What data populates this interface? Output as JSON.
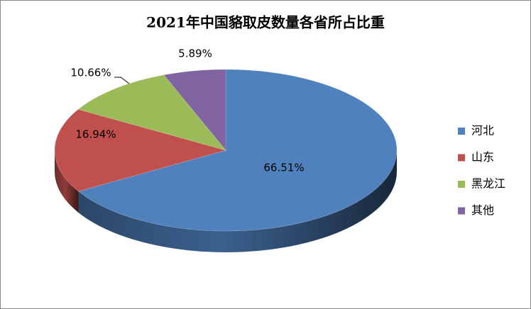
{
  "chart_data": {
    "type": "pie",
    "title": "2021年中国貉取皮数量各省所占比重",
    "categories": [
      "河北",
      "山东",
      "黑龙江",
      "其他"
    ],
    "values": [
      66.51,
      16.94,
      10.66,
      5.89
    ],
    "value_labels": [
      "66.51%",
      "16.94%",
      "10.66%",
      "5.89%"
    ],
    "colors": [
      "#4f81bd",
      "#c0504d",
      "#9bbb59",
      "#8064a2"
    ],
    "legend": "right"
  }
}
